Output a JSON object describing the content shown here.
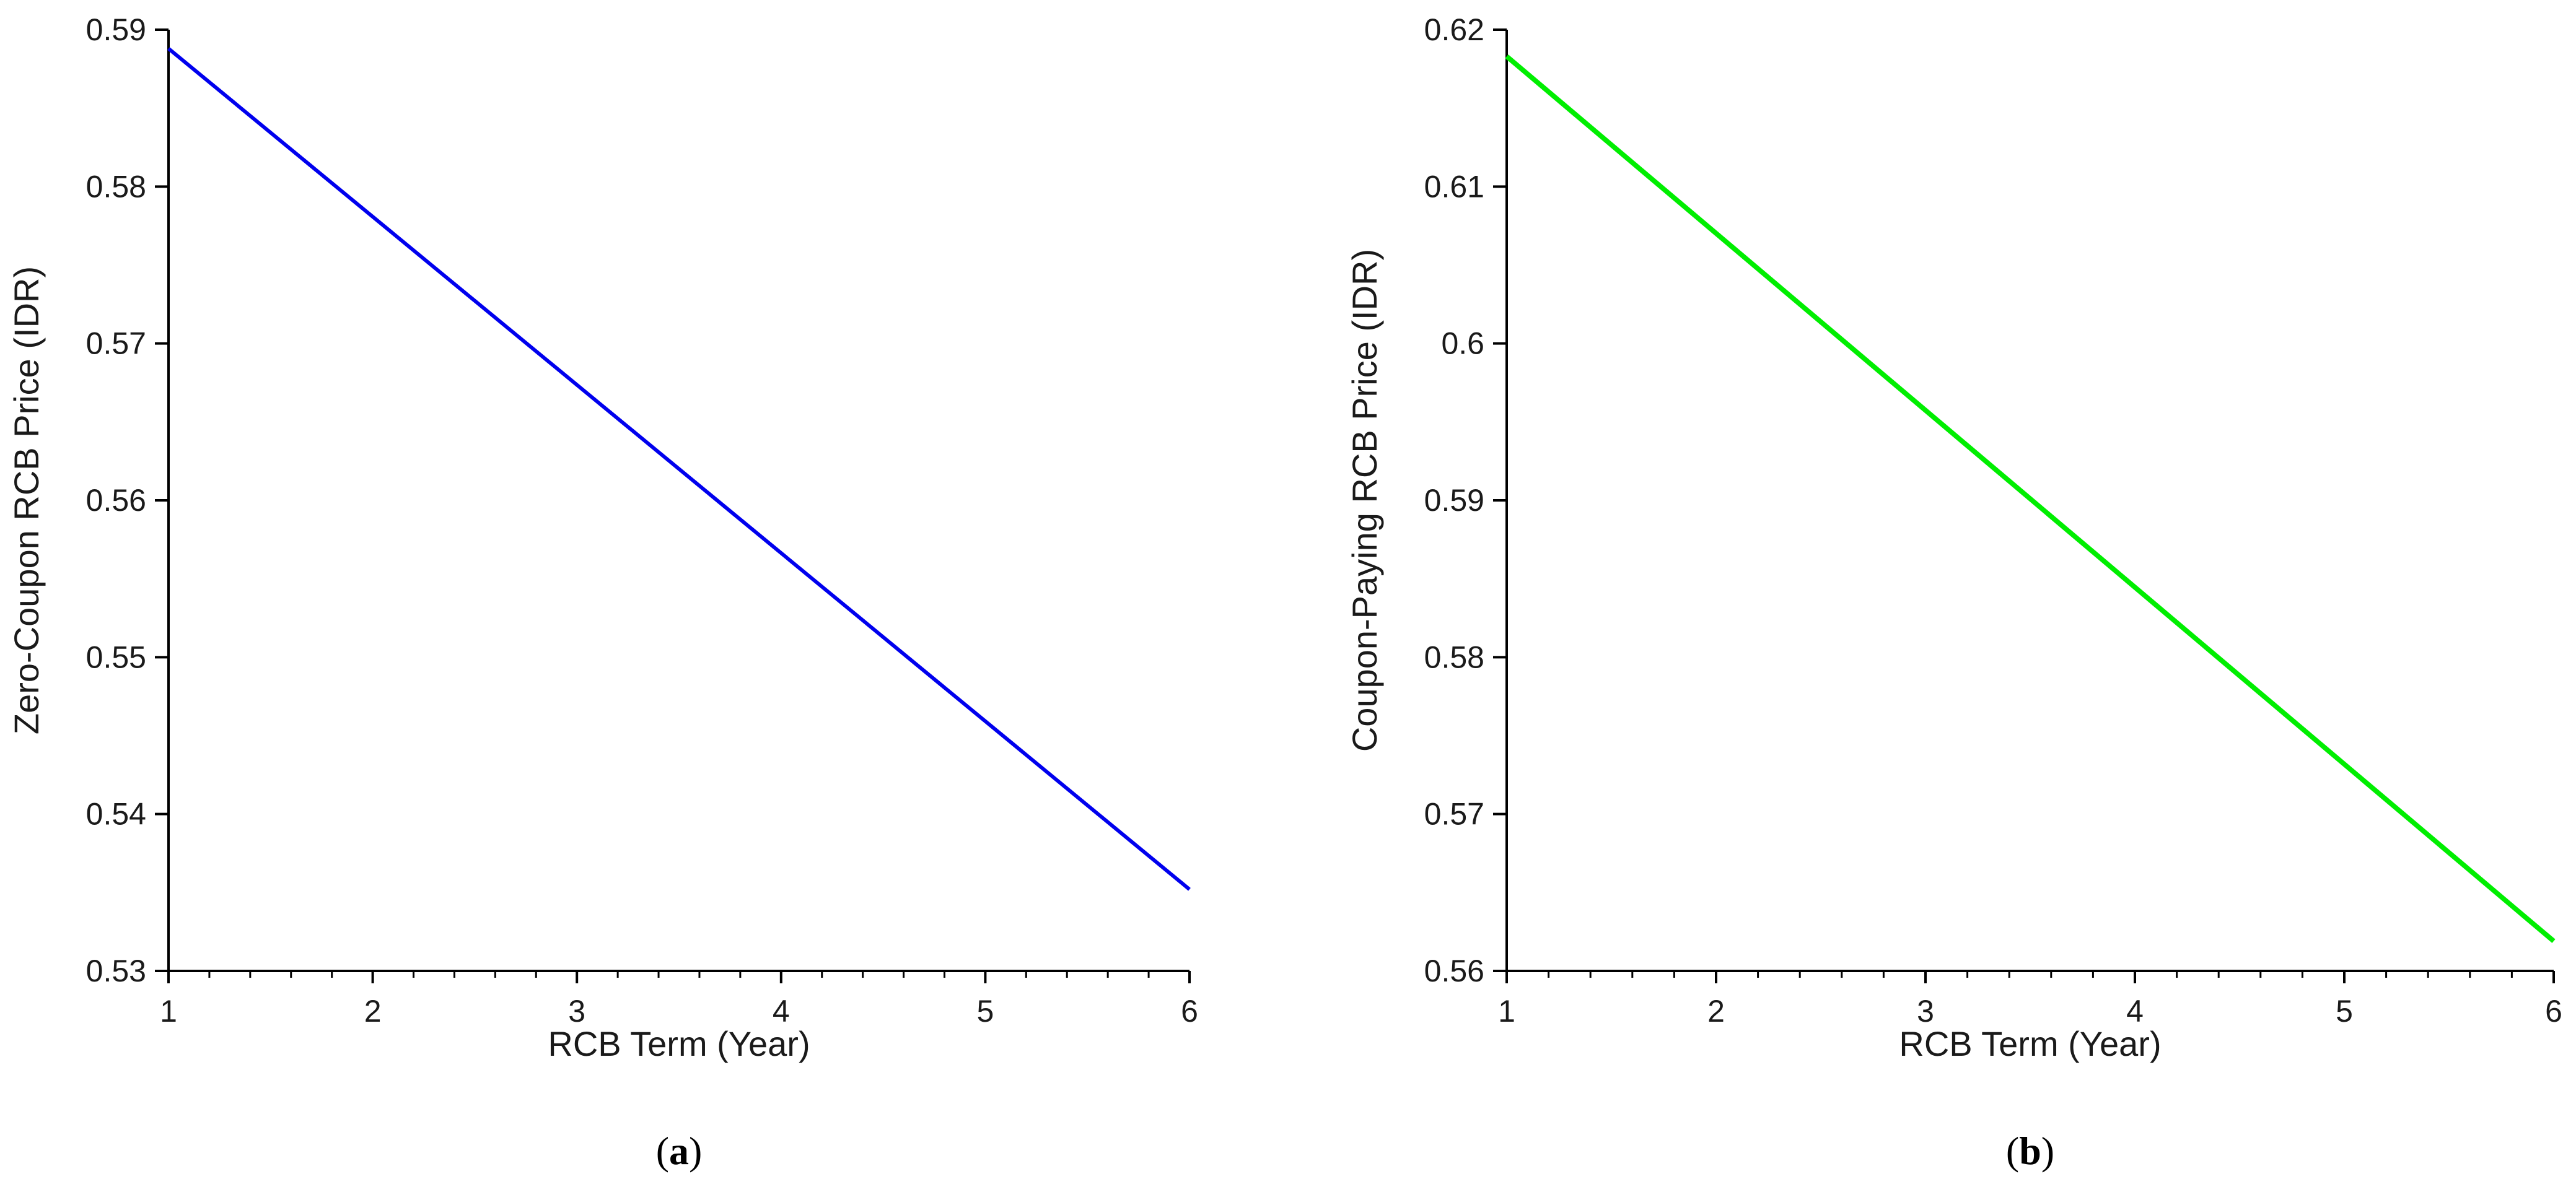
{
  "chart_data": [
    {
      "type": "line",
      "panel_label": "a",
      "title": "",
      "xlabel": "RCB Term (Year)",
      "ylabel": "Zero-Coupon RCB Price (IDR)",
      "xlim": [
        1,
        6
      ],
      "ylim": [
        0.53,
        0.59
      ],
      "x_ticks": [
        1,
        2,
        3,
        4,
        5,
        6
      ],
      "y_ticks": [
        0.53,
        0.54,
        0.55,
        0.56,
        0.57,
        0.58,
        0.59
      ],
      "x_tick_labels": [
        "1",
        "2",
        "3",
        "4",
        "5",
        "6"
      ],
      "y_tick_labels": [
        "0.53",
        "0.54",
        "0.55",
        "0.56",
        "0.57",
        "0.58",
        "0.59"
      ],
      "grid": false,
      "series": [
        {
          "name": "Zero-Coupon RCB Price",
          "color": "#0000ee",
          "x": [
            1,
            6
          ],
          "y": [
            0.5888,
            0.5352
          ]
        }
      ]
    },
    {
      "type": "line",
      "panel_label": "b",
      "title": "",
      "xlabel": "RCB Term (Year)",
      "ylabel": "Coupon-Paying RCB Price (IDR)",
      "xlim": [
        1,
        6
      ],
      "ylim": [
        0.56,
        0.62
      ],
      "x_ticks": [
        1,
        2,
        3,
        4,
        5,
        6
      ],
      "y_ticks": [
        0.56,
        0.57,
        0.58,
        0.59,
        0.6,
        0.61,
        0.62
      ],
      "x_tick_labels": [
        "1",
        "2",
        "3",
        "4",
        "5",
        "6"
      ],
      "y_tick_labels": [
        "0.56",
        "0.57",
        "0.58",
        "0.59",
        "0.6",
        "0.61",
        "0.62"
      ],
      "grid": false,
      "series": [
        {
          "name": "Coupon-Paying RCB Price",
          "color": "#00ee00",
          "x": [
            1,
            6
          ],
          "y": [
            0.6183,
            0.5619
          ]
        }
      ]
    }
  ]
}
